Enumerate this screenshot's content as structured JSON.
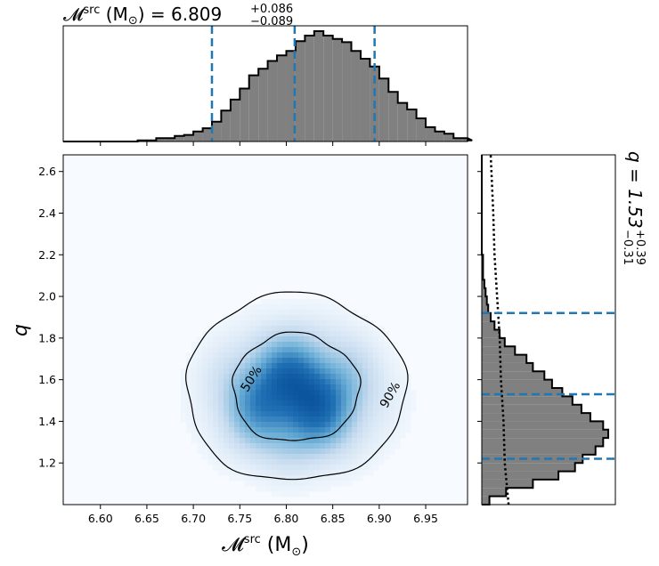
{
  "top_title": {
    "symbol": "𝓜",
    "superscript": "src",
    "unit_open": " (M",
    "unit_sub": "⊙",
    "unit_close": ") = 6.809",
    "err_plus": "+0.086",
    "err_minus": "−0.089"
  },
  "right_title": {
    "text": "q = 1.53",
    "err_plus": "+0.39",
    "err_minus": "−0.31"
  },
  "x_axis_label": {
    "symbol": "𝓜",
    "superscript": "src",
    "unit_open": " (M",
    "unit_sub": "⊙",
    "unit_close": ")"
  },
  "y_axis_label": "q",
  "contour_labels": [
    "50%",
    "90%"
  ],
  "colors": {
    "histogram_fill": "#808080",
    "histogram_edge": "#000000",
    "quantile_lines": "#1f77b4",
    "density_colormap": [
      "#f7fbff",
      "#c6dbef",
      "#6baed6",
      "#2171b5",
      "#08519c"
    ]
  },
  "chart_data": [
    {
      "type": "heatmap",
      "description_of_axes": "joint posterior density",
      "xlabel": "𝓜src (M⊙)",
      "ylabel": "q",
      "xlim": [
        6.56,
        6.995
      ],
      "ylim": [
        1.0,
        2.68
      ],
      "xticks": [
        "6.60",
        "6.65",
        "6.70",
        "6.75",
        "6.80",
        "6.85",
        "6.90",
        "6.95"
      ],
      "yticks": [
        "1.2",
        "1.4",
        "1.6",
        "1.8",
        "2.0",
        "2.2",
        "2.4",
        "2.6"
      ],
      "peak": {
        "x": 6.81,
        "y": 1.52
      },
      "contour_levels": [
        "50%",
        "90%"
      ]
    },
    {
      "type": "bar",
      "variable": "chirp mass source frame (M⊙)",
      "xlim": [
        6.56,
        6.995
      ],
      "bin_edges_start": 6.56,
      "bin_width": 0.01,
      "values": [
        0,
        0,
        0,
        0,
        0,
        0,
        0,
        0,
        1,
        1,
        3,
        3,
        5,
        6,
        9,
        12,
        18,
        28,
        38,
        48,
        60,
        66,
        73,
        78,
        82,
        91,
        96,
        100,
        96,
        93,
        90,
        82,
        75,
        68,
        57,
        45,
        35,
        29,
        21,
        13,
        9,
        7,
        3,
        3,
        1
      ],
      "median": 6.809,
      "quantile_lines": [
        6.72,
        6.809,
        6.895
      ]
    },
    {
      "type": "bar",
      "orientation": "horizontal",
      "variable": "q",
      "ylim": [
        1.0,
        2.68
      ],
      "bin_edges_start": 1.0,
      "bin_width": 0.04,
      "values": [
        6,
        19,
        40,
        60,
        73,
        79,
        89,
        95,
        99,
        95,
        85,
        78,
        71,
        63,
        55,
        49,
        40,
        35,
        26,
        18,
        14,
        10,
        7,
        5,
        4,
        3,
        2,
        1,
        1,
        1,
        0,
        0,
        0,
        0,
        0,
        0,
        0,
        0,
        0,
        0,
        0,
        0
      ],
      "median": 1.53,
      "quantile_lines": [
        1.22,
        1.53,
        1.92
      ],
      "prior_curve": {
        "q": [
          1.0,
          1.2,
          1.4,
          1.6,
          1.8,
          2.0,
          2.2,
          2.4,
          2.68
        ],
        "level": [
          21,
          18,
          17,
          15,
          14,
          12,
          10,
          9,
          7
        ]
      }
    }
  ]
}
